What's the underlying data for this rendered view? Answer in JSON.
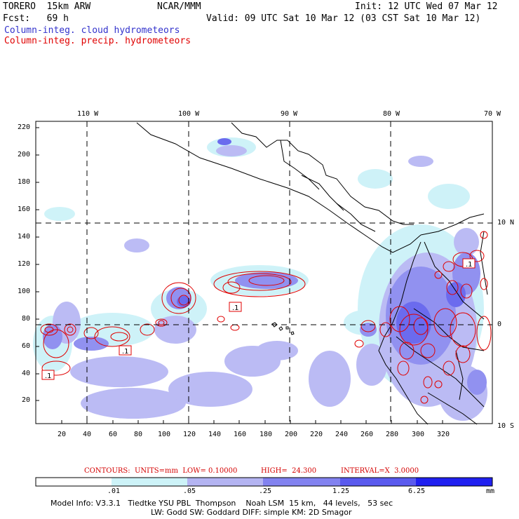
{
  "header": {
    "model_name": "TORERO  15km ARW",
    "center": "NCAR/MMM",
    "init": "Init: 12 UTC Wed 07 Mar 12",
    "fcst": "Fcst:   69 h",
    "valid": "Valid: 09 UTC Sat 10 Mar 12 (03 CST Sat 10 Mar 12)"
  },
  "legend": {
    "cloud_label": "Column-integ. cloud hydrometeors",
    "precip_label": "Column-integ. precip. hydrometeors",
    "cloud_color": "#3333cc",
    "precip_color": "#e00000"
  },
  "map": {
    "lon_labels": [
      "110 W",
      "100 W",
      "90 W",
      "80 W",
      "70 W"
    ],
    "lat_labels": [
      "10 N",
      "0",
      "10 S"
    ],
    "y_ticks": [
      "220",
      "200",
      "180",
      "160",
      "140",
      "120",
      "100",
      "80",
      "60",
      "40",
      "20"
    ],
    "x_ticks": [
      "20",
      "40",
      "60",
      "80",
      "100",
      "120",
      "140",
      "160",
      "180",
      "200",
      "220",
      "240",
      "260",
      "280",
      "300",
      "320"
    ],
    "contour_labels": [
      ".1",
      ".1",
      ".1",
      ".1"
    ],
    "colors": {
      "shade_light": "#ccf2f8",
      "shade_1": "#b8b8f4",
      "shade_2": "#8c8cf0",
      "shade_3": "#6464ee",
      "shade_4": "#3c3cf0",
      "contour": "#e00000",
      "coast": "#000000"
    }
  },
  "contours_note": {
    "units": "CONTOURS:  UNITS=mm  LOW= 0.10000",
    "high": "HIGH=  24.300",
    "interval": "INTERVAL=X  3.0000"
  },
  "colorbar": {
    "ticks": [
      ".01",
      ".05",
      ".25",
      "1.25",
      "6.25"
    ],
    "unit": "mm",
    "bins": [
      "#ffffff",
      "#cdf3f8",
      "#b4b4f2",
      "#8282f0",
      "#5a5aee",
      "#2020f0"
    ]
  },
  "footer": {
    "line1": "Model Info: V3.3.1   Tiedtke YSU PBL  Thompson    Noah LSM  15 km,   44 levels,   53 sec",
    "line2": "LW: Godd SW: Goddard DIFF: simple KM: 2D Smagor"
  }
}
